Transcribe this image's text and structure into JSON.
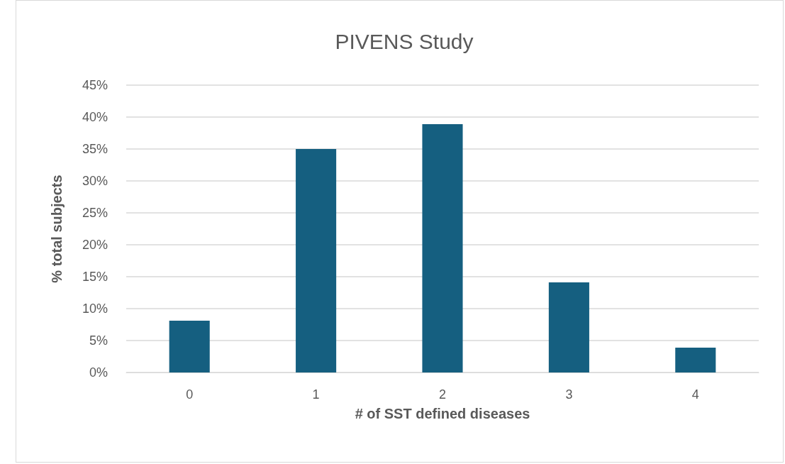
{
  "chart_data": {
    "type": "bar",
    "title": "PIVENS Study",
    "xlabel": "# of SST defined diseases",
    "ylabel": "% total subjects",
    "categories": [
      "0",
      "1",
      "2",
      "3",
      "4"
    ],
    "values": [
      8.1,
      35,
      38.9,
      14.1,
      3.9
    ],
    "color": "#155f80",
    "ylim": [
      0,
      45
    ],
    "yticks": [
      {
        "value": 0,
        "label": "0%"
      },
      {
        "value": 5,
        "label": "5%"
      },
      {
        "value": 10,
        "label": "10%"
      },
      {
        "value": 15,
        "label": "15%"
      },
      {
        "value": 20,
        "label": "20%"
      },
      {
        "value": 25,
        "label": "25%"
      },
      {
        "value": 30,
        "label": "30%"
      },
      {
        "value": 35,
        "label": "35%"
      },
      {
        "value": 40,
        "label": "40%"
      },
      {
        "value": 45,
        "label": "45%"
      }
    ],
    "grid": "y"
  }
}
